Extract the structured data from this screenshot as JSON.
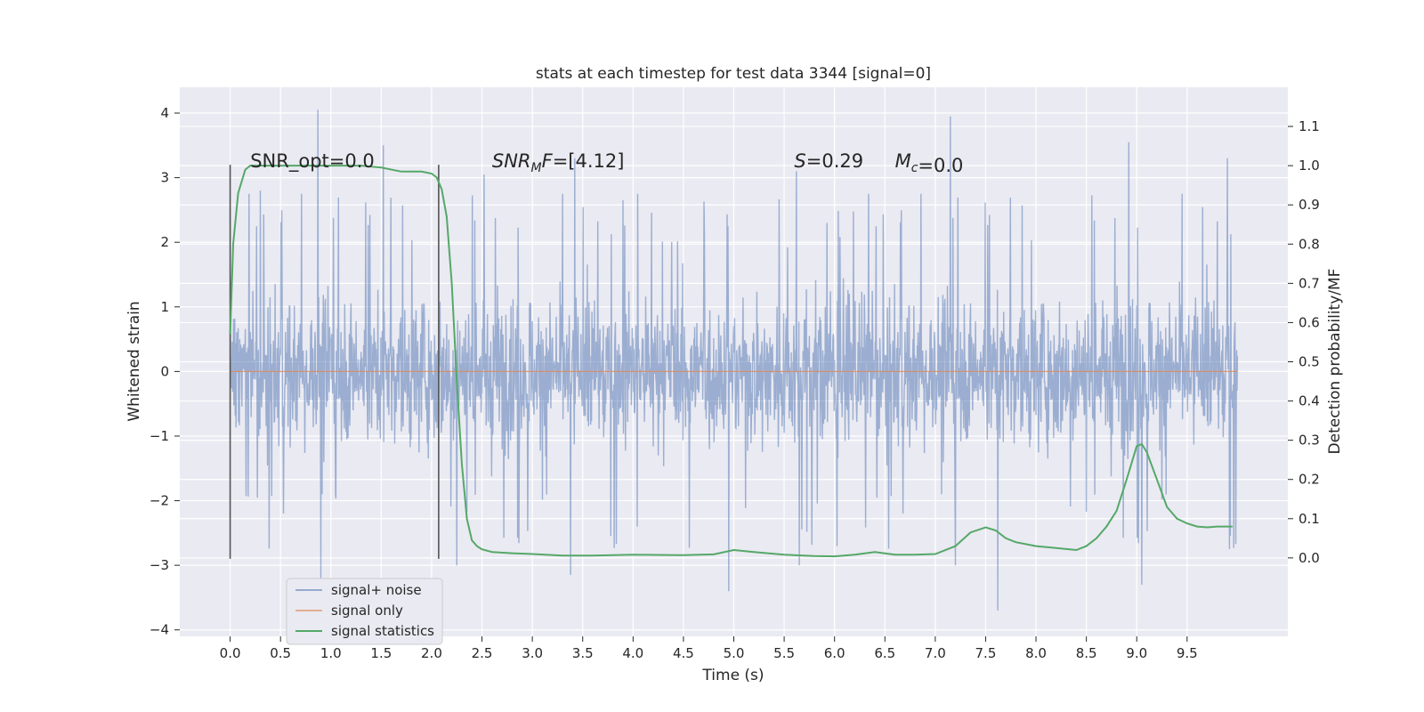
{
  "chart_data": {
    "type": "line",
    "title": "stats at each timestep for test data 3344 [signal=0]",
    "xlabel": "Time (s)",
    "ylabel": "Whitened strain",
    "ylabel_right": "Detection probability/MF",
    "xlim": [
      -0.5,
      10.5
    ],
    "ylim": [
      -4.1,
      4.4
    ],
    "ylim_right": [
      -0.2,
      1.2
    ],
    "x_ticks": [
      0.0,
      0.5,
      1.0,
      1.5,
      2.0,
      2.5,
      3.0,
      3.5,
      4.0,
      4.5,
      5.0,
      5.5,
      6.0,
      6.5,
      7.0,
      7.5,
      8.0,
      8.5,
      9.0,
      9.5
    ],
    "x_tick_labels": [
      "0.0",
      "0.5",
      "1.0",
      "1.5",
      "2.0",
      "2.5",
      "3.0",
      "3.5",
      "4.0",
      "4.5",
      "5.0",
      "5.5",
      "6.0",
      "6.5",
      "7.0",
      "7.5",
      "8.0",
      "8.5",
      "9.0",
      "9.5"
    ],
    "y_ticks": [
      -4,
      -3,
      -2,
      -1,
      0,
      1,
      2,
      3,
      4
    ],
    "y_tick_labels": [
      "−4",
      "−3",
      "−2",
      "−1",
      "0",
      "1",
      "2",
      "3",
      "4"
    ],
    "y_right_ticks": [
      0.0,
      0.1,
      0.2,
      0.3,
      0.4,
      0.5,
      0.6,
      0.7,
      0.8,
      0.9,
      1.0,
      1.1
    ],
    "y_right_tick_labels": [
      "0.0",
      "0.1",
      "0.2",
      "0.3",
      "0.4",
      "0.5",
      "0.6",
      "0.7",
      "0.8",
      "0.9",
      "1.0",
      "1.1"
    ],
    "grid": true,
    "legend_position": "lower-left",
    "noise": {
      "name": "signal+ noise",
      "color": "#4c72b0",
      "x_range": [
        0.0,
        10.0
      ],
      "typical_band": [
        -1.9,
        1.9
      ],
      "peaks": [
        {
          "x": 0.0,
          "y": 2.5
        },
        {
          "x": 0.3,
          "y": 2.8
        },
        {
          "x": 0.87,
          "y": 4.05
        },
        {
          "x": 0.9,
          "y": -3.2
        },
        {
          "x": 1.52,
          "y": 3.5
        },
        {
          "x": 2.25,
          "y": -3.0
        },
        {
          "x": 2.52,
          "y": 3.05
        },
        {
          "x": 3.38,
          "y": -3.15
        },
        {
          "x": 3.42,
          "y": 3.3
        },
        {
          "x": 4.95,
          "y": -3.4
        },
        {
          "x": 5.62,
          "y": 3.1
        },
        {
          "x": 5.65,
          "y": -3.0
        },
        {
          "x": 7.15,
          "y": 3.95
        },
        {
          "x": 7.2,
          "y": -3.0
        },
        {
          "x": 7.62,
          "y": -3.7
        },
        {
          "x": 8.92,
          "y": 3.55
        },
        {
          "x": 9.05,
          "y": -3.3
        },
        {
          "x": 9.9,
          "y": 3.3
        },
        {
          "x": 9.92,
          "y": -2.75
        }
      ]
    },
    "signal_only": {
      "name": "signal only",
      "color": "#dd8452",
      "x": [
        0.0,
        10.0
      ],
      "y": [
        0.0,
        0.0
      ]
    },
    "statistics": {
      "name": "signal statistics",
      "color": "#55a868",
      "axis": "right",
      "x": [
        0.0,
        0.03,
        0.08,
        0.15,
        0.2,
        0.3,
        0.5,
        0.8,
        1.0,
        1.3,
        1.5,
        1.7,
        1.9,
        2.0,
        2.05,
        2.1,
        2.15,
        2.2,
        2.25,
        2.3,
        2.35,
        2.4,
        2.45,
        2.5,
        2.6,
        2.8,
        3.0,
        3.3,
        3.6,
        4.0,
        4.5,
        4.8,
        5.0,
        5.2,
        5.5,
        5.8,
        6.0,
        6.2,
        6.4,
        6.6,
        6.8,
        7.0,
        7.2,
        7.35,
        7.5,
        7.6,
        7.7,
        7.8,
        8.0,
        8.2,
        8.4,
        8.5,
        8.6,
        8.7,
        8.8,
        8.9,
        9.0,
        9.05,
        9.1,
        9.2,
        9.3,
        9.4,
        9.5,
        9.6,
        9.7,
        9.8,
        9.95
      ],
      "y": [
        0.57,
        0.8,
        0.93,
        0.99,
        1.0,
        1.0,
        1.0,
        1.0,
        1.0,
        1.0,
        0.995,
        0.985,
        0.985,
        0.98,
        0.97,
        0.94,
        0.87,
        0.7,
        0.45,
        0.24,
        0.1,
        0.045,
        0.03,
        0.022,
        0.015,
        0.012,
        0.01,
        0.006,
        0.006,
        0.008,
        0.007,
        0.009,
        0.02,
        0.015,
        0.008,
        0.005,
        0.004,
        0.008,
        0.015,
        0.008,
        0.008,
        0.01,
        0.03,
        0.065,
        0.078,
        0.07,
        0.05,
        0.04,
        0.03,
        0.025,
        0.02,
        0.03,
        0.05,
        0.08,
        0.12,
        0.2,
        0.285,
        0.29,
        0.27,
        0.2,
        0.13,
        0.1,
        0.088,
        0.08,
        0.078,
        0.08,
        0.08
      ]
    },
    "vertical_markers": {
      "color": "#555555",
      "x": [
        0.0,
        2.07
      ],
      "y_range": [
        -2.9,
        3.2
      ]
    },
    "annotations": [
      {
        "text": "SNR_opt=0.0",
        "x": 0.2,
        "y": 3.2
      },
      {
        "text": "=[4.12]",
        "math_base": "SNR",
        "math_sub": "M",
        "math_tail": "F",
        "x": 2.6,
        "y": 3.2
      },
      {
        "text": "=0.29",
        "math_base": "S",
        "x": 5.6,
        "y": 3.2
      },
      {
        "text": "=0.0",
        "math_base": "M",
        "math_sub": "c",
        "x": 6.6,
        "y": 3.2
      }
    ]
  }
}
